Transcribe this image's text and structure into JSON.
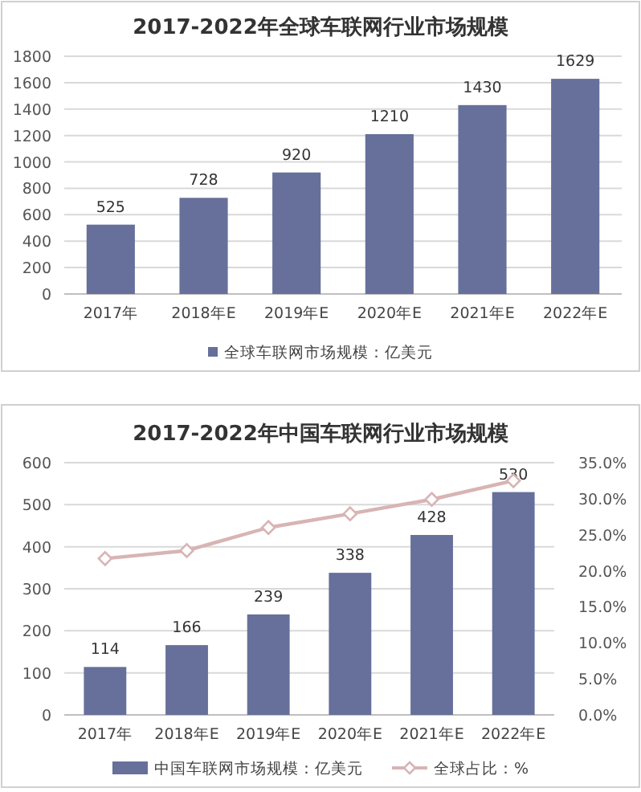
{
  "chart_data": [
    {
      "type": "bar",
      "title": "2017-2022年全球车联网行业市场规模",
      "categories": [
        "2017年",
        "2018年E",
        "2019年E",
        "2020年E",
        "2021年E",
        "2022年E"
      ],
      "series": [
        {
          "name": "全球车联网市场规模：亿美元",
          "color": "#66709a",
          "values": [
            525,
            728,
            920,
            1210,
            1430,
            1629
          ]
        }
      ],
      "data_labels": true,
      "ylim": [
        0,
        1800
      ],
      "yticks": [
        0,
        200,
        400,
        600,
        800,
        1000,
        1200,
        1400,
        1600,
        1800
      ],
      "grid": "y",
      "legend": "bottom"
    },
    {
      "type": "bar",
      "title": "2017-2022年中国车联网行业市场规模",
      "categories": [
        "2017年",
        "2018年E",
        "2019年E",
        "2020年E",
        "2021年E",
        "2022年E"
      ],
      "series": [
        {
          "name": "中国车联网市场规模：亿美元",
          "color": "#66709a",
          "values": [
            114,
            166,
            239,
            338,
            428,
            530
          ],
          "value_labels": [
            "114",
            "166",
            "239",
            "338",
            "428",
            "530"
          ]
        },
        {
          "name": "全球占比：%",
          "type": "line",
          "axis": "y2",
          "color": "#d8b4b4",
          "marker": "diamond",
          "values": [
            21.7,
            22.8,
            26.0,
            27.9,
            29.9,
            32.5
          ]
        }
      ],
      "ylim": [
        0,
        600
      ],
      "yticks": [
        0,
        100,
        200,
        300,
        400,
        500,
        600
      ],
      "y2lim": [
        0,
        35
      ],
      "y2ticks": [
        {
          "value": 0,
          "label": "0.0%"
        },
        {
          "value": 5,
          "label": "5.0%"
        },
        {
          "value": 10,
          "label": "10.0%"
        },
        {
          "value": 15,
          "label": "15.0%"
        },
        {
          "value": 20,
          "label": "20.0%"
        },
        {
          "value": 25,
          "label": "25.0%"
        },
        {
          "value": 30,
          "label": "30.0%"
        },
        {
          "value": 35,
          "label": "35.0%"
        }
      ],
      "grid": "y",
      "legend": "bottom"
    }
  ]
}
